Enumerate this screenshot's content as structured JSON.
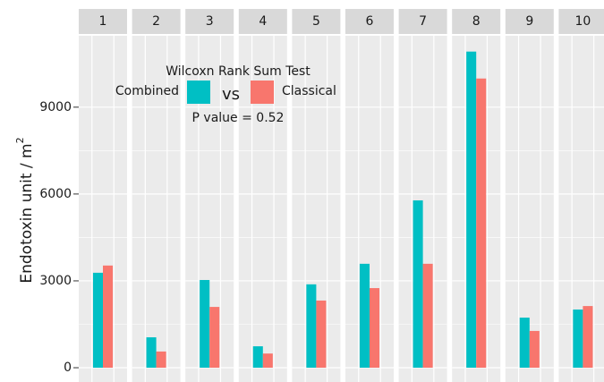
{
  "chart_data": {
    "type": "bar",
    "categories": [
      "1",
      "2",
      "3",
      "4",
      "5",
      "6",
      "7",
      "8",
      "9",
      "10"
    ],
    "series": [
      {
        "name": "Combined",
        "color": "#00BFC4",
        "values": [
          3280,
          1050,
          3030,
          740,
          2880,
          3590,
          5780,
          10920,
          1730,
          2010
        ]
      },
      {
        "name": "Classical",
        "color": "#F8766D",
        "values": [
          3530,
          560,
          2100,
          490,
          2320,
          2750,
          3590,
          9990,
          1270,
          2130
        ]
      }
    ],
    "y_label": "Endotoxin unit / m",
    "y_label_superscript": "2",
    "annotation_title": "Wilcoxn Rank Sum Test",
    "annotation_vs": "vs",
    "annotation_p": "P value = 0.52",
    "ylim": [
      -546,
      11466
    ],
    "yticks": [
      0,
      3000,
      6000,
      9000
    ],
    "grid": true
  }
}
